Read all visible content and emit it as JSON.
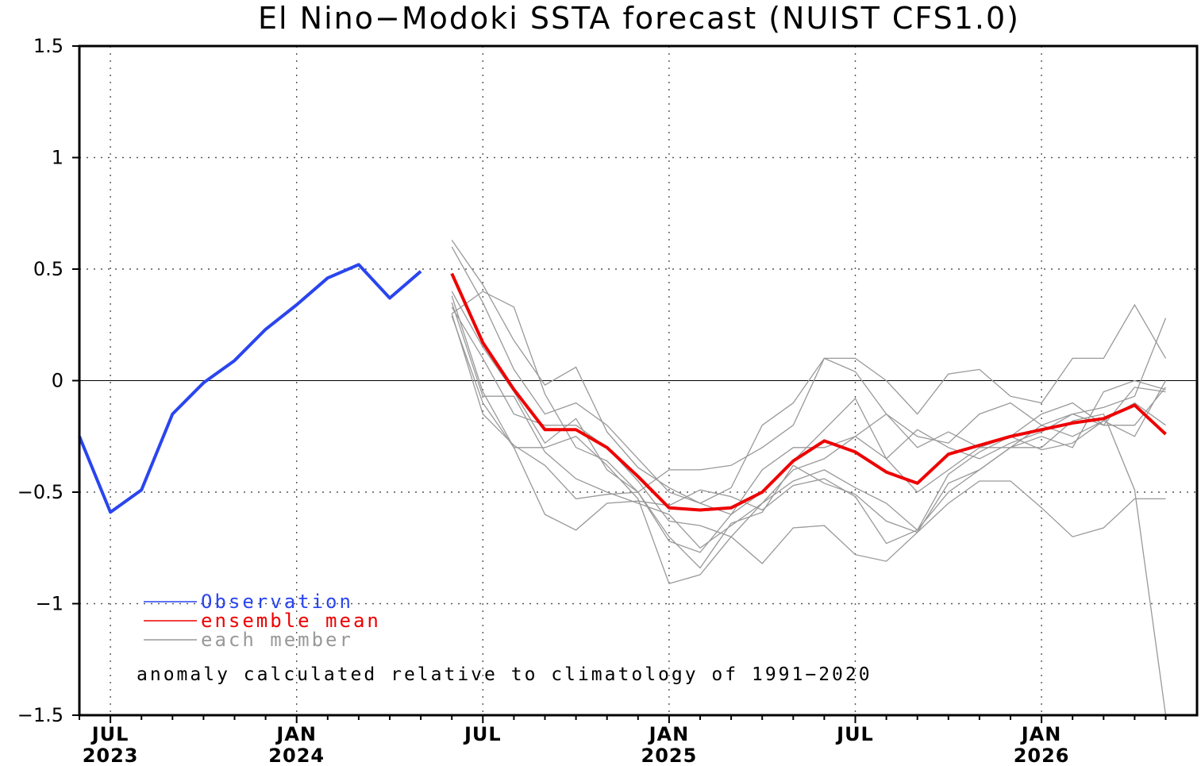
{
  "chart_data": {
    "type": "line",
    "title": "El Nino−Modoki SSTA forecast (NUIST CFS1.0)",
    "xlabel": "",
    "ylabel": "",
    "x_range": [
      "2023-06",
      "2026-05"
    ],
    "ylim": [
      -1.5,
      1.5
    ],
    "y_ticks": [
      1.5,
      1,
      0.5,
      0,
      -0.5,
      -1,
      -1.5
    ],
    "y_tick_labels": [
      "1.5",
      "1",
      "0.5",
      "0",
      "−0.5",
      "−1",
      "−1.5"
    ],
    "x_ticks": [
      {
        "date": "2023-07",
        "label": "JUL",
        "year": "2023"
      },
      {
        "date": "2024-01",
        "label": "JAN",
        "year": "2024"
      },
      {
        "date": "2024-07",
        "label": "JUL",
        "year": ""
      },
      {
        "date": "2025-01",
        "label": "JAN",
        "year": "2025"
      },
      {
        "date": "2025-07",
        "label": "JUL",
        "year": ""
      },
      {
        "date": "2026-01",
        "label": "JAN",
        "year": "2026"
      }
    ],
    "grid": true,
    "legend_placement": "bottom-left",
    "series": [
      {
        "name": "Observation",
        "color": "#2a45ee",
        "x": [
          "2023-06",
          "2023-07",
          "2023-08",
          "2023-09",
          "2023-10",
          "2023-11",
          "2023-12",
          "2024-01",
          "2024-02",
          "2024-03",
          "2024-04",
          "2024-05"
        ],
        "values": [
          -0.25,
          -0.59,
          -0.49,
          -0.15,
          -0.01,
          0.09,
          0.23,
          0.34,
          0.46,
          0.52,
          0.37,
          0.49
        ]
      },
      {
        "name": "ensemble mean",
        "color": "#ee0000",
        "x": [
          "2024-06",
          "2024-07",
          "2024-08",
          "2024-09",
          "2024-10",
          "2024-11",
          "2024-12",
          "2025-01",
          "2025-02",
          "2025-03",
          "2025-04",
          "2025-05",
          "2025-06",
          "2025-07",
          "2025-08",
          "2025-09",
          "2025-10",
          "2025-11",
          "2025-12",
          "2026-01",
          "2026-02",
          "2026-03",
          "2026-04",
          "2026-05"
        ],
        "values": [
          0.48,
          0.17,
          -0.04,
          -0.22,
          -0.22,
          -0.3,
          -0.43,
          -0.57,
          -0.58,
          -0.57,
          -0.5,
          -0.36,
          -0.27,
          -0.32,
          -0.41,
          -0.46,
          -0.33,
          -0.29,
          -0.25,
          -0.22,
          -0.19,
          -0.17,
          -0.11,
          -0.24
        ]
      }
    ],
    "members": {
      "name": "each member",
      "color": "#999999",
      "x": [
        "2024-06",
        "2024-07",
        "2024-08",
        "2024-09",
        "2024-10",
        "2024-11",
        "2024-12",
        "2025-01",
        "2025-02",
        "2025-03",
        "2025-04",
        "2025-05",
        "2025-06",
        "2025-07",
        "2025-08",
        "2025-09",
        "2025-10",
        "2025-11",
        "2025-12",
        "2026-01",
        "2026-02",
        "2026-03",
        "2026-04",
        "2026-05"
      ],
      "values": [
        [
          0.63,
          0.43,
          0.18,
          -0.02,
          0.06,
          -0.23,
          -0.39,
          -0.48,
          -0.55,
          -0.48,
          -0.2,
          -0.1,
          0.1,
          0.1,
          0.0,
          -0.15,
          0.03,
          0.05,
          -0.07,
          -0.1,
          0.1,
          0.1,
          0.34,
          0.1
        ],
        [
          0.6,
          0.35,
          0.05,
          -0.15,
          -0.1,
          -0.2,
          -0.35,
          -0.5,
          -0.55,
          -0.6,
          -0.4,
          -0.3,
          -0.3,
          -0.25,
          -0.15,
          -0.3,
          -0.23,
          -0.3,
          -0.3,
          -0.2,
          -0.15,
          -0.2,
          -0.03,
          -0.05
        ],
        [
          0.4,
          0.15,
          -0.05,
          -0.28,
          -0.17,
          -0.4,
          -0.5,
          -0.4,
          -0.4,
          -0.38,
          -0.3,
          -0.2,
          0.1,
          0.04,
          -0.15,
          -0.25,
          -0.28,
          -0.15,
          -0.1,
          -0.2,
          -0.25,
          -0.18,
          -0.25,
          0.0
        ],
        [
          0.35,
          -0.07,
          -0.07,
          -0.32,
          -0.44,
          -0.5,
          -0.55,
          -0.6,
          -0.75,
          -0.65,
          -0.55,
          -0.4,
          -0.35,
          -0.25,
          -0.35,
          -0.5,
          -0.4,
          -0.3,
          -0.25,
          -0.15,
          -0.1,
          -0.2,
          -0.2,
          -0.03
        ],
        [
          0.33,
          0.1,
          -0.15,
          -0.2,
          -0.2,
          -0.3,
          -0.45,
          -0.63,
          -0.65,
          -0.7,
          -0.55,
          -0.45,
          -0.4,
          -0.48,
          -0.55,
          -0.67,
          -0.5,
          -0.4,
          -0.3,
          -0.25,
          -0.3,
          -0.05,
          0.0,
          -0.04
        ],
        [
          0.3,
          -0.15,
          -0.29,
          -0.38,
          -0.53,
          -0.51,
          -0.5,
          -0.7,
          -0.84,
          -0.64,
          -0.59,
          -0.38,
          -0.46,
          -0.51,
          -0.63,
          -0.68,
          -0.46,
          -0.4,
          -0.3,
          -0.3,
          -0.18,
          -0.15,
          -0.49,
          -1.5
        ],
        [
          0.3,
          0.4,
          0.33,
          -0.06,
          -0.3,
          -0.36,
          -0.5,
          -0.72,
          -0.77,
          -0.6,
          -0.5,
          -0.36,
          -0.22,
          -0.08,
          -0.35,
          -0.22,
          -0.3,
          -0.35,
          -0.28,
          -0.23,
          -0.15,
          -0.12,
          -0.07,
          0.28
        ],
        [
          0.29,
          -0.1,
          -0.3,
          -0.3,
          -0.25,
          -0.38,
          -0.53,
          -0.91,
          -0.87,
          -0.7,
          -0.82,
          -0.66,
          -0.65,
          -0.78,
          -0.81,
          -0.68,
          -0.55,
          -0.45,
          -0.45,
          -0.57,
          -0.7,
          -0.66,
          -0.53,
          -0.53
        ],
        [
          0.38,
          -0.05,
          -0.3,
          -0.6,
          -0.67,
          -0.55,
          -0.54,
          -0.56,
          -0.49,
          -0.52,
          -0.58,
          -0.47,
          -0.44,
          -0.52,
          -0.73,
          -0.67,
          -0.42,
          -0.32,
          -0.25,
          -0.31,
          -0.28,
          -0.18,
          -0.1,
          -0.2
        ]
      ]
    },
    "legend": [
      {
        "label": "Observation",
        "color": "#2a45ee"
      },
      {
        "label": "ensemble mean",
        "color": "#ee0000"
      },
      {
        "label": "each member",
        "color": "#999999"
      }
    ],
    "annotation": "anomaly calculated relative to climatology of 1991−2020"
  }
}
